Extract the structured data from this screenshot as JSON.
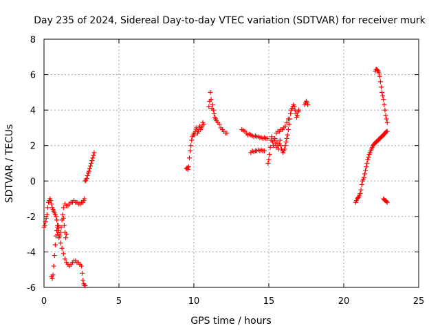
{
  "chart_data": {
    "type": "scatter",
    "title": "Day 235 of 2024, Sidereal Day-to-day VTEC variation (SDTVAR) for receiver murk",
    "xlabel": "GPS time / hours",
    "ylabel": "SDTVAR / TECUs",
    "xlim": [
      0,
      25
    ],
    "ylim": [
      -6,
      8
    ],
    "xticks": [
      0,
      5,
      10,
      15,
      20,
      25
    ],
    "yticks": [
      -6,
      -4,
      -2,
      0,
      2,
      4,
      6,
      8
    ],
    "xtick_labels": [
      "0",
      "5",
      "10",
      "15",
      "20",
      "25"
    ],
    "ytick_labels": [
      "-6",
      "-4",
      "-2",
      "0",
      "2",
      "4",
      "6",
      "8"
    ],
    "grid": true,
    "marker": "plus",
    "color": "#ff0000",
    "segments": [
      {
        "x": [
          0.0,
          0.05,
          0.1,
          0.15,
          0.2,
          0.25,
          0.3,
          0.35,
          0.4,
          0.45,
          0.5,
          0.55,
          0.6,
          0.65,
          0.7,
          0.75,
          0.8,
          0.85,
          0.9,
          0.95,
          1.0,
          1.05,
          1.1,
          1.15,
          1.2,
          1.25,
          1.3,
          1.35,
          1.4,
          1.45,
          1.5
        ],
        "y": [
          -2.6,
          -2.5,
          -2.3,
          -2.1,
          -1.9,
          -1.5,
          -1.2,
          -1.1,
          -1.0,
          -1.1,
          -1.3,
          -1.5,
          -1.6,
          -1.7,
          -1.8,
          -1.9,
          -2.0,
          -2.2,
          -2.5,
          -2.8,
          -3.0,
          -3.1,
          -2.9,
          -2.6,
          -2.2,
          -1.9,
          -2.1,
          -2.5,
          -2.9,
          -3.2,
          -3.0
        ]
      },
      {
        "x": [
          0.5,
          0.55,
          0.6,
          0.65,
          0.7,
          0.75,
          0.8,
          0.85,
          0.9,
          0.95,
          1.0
        ],
        "y": [
          -5.4,
          -5.5,
          -5.3,
          -4.8,
          -4.2,
          -3.6,
          -3.1,
          -2.8,
          -2.6,
          -2.5,
          -2.6
        ]
      },
      {
        "x": [
          0.9,
          1.0,
          1.1,
          1.2,
          1.3,
          1.4,
          1.5,
          1.6,
          1.7,
          1.8,
          1.9,
          2.0,
          2.1,
          2.2,
          2.3,
          2.4,
          2.5,
          2.55,
          2.6,
          2.65,
          2.7,
          2.75
        ],
        "y": [
          -3.0,
          -3.2,
          -3.5,
          -3.8,
          -4.1,
          -4.4,
          -4.6,
          -4.7,
          -4.8,
          -4.7,
          -4.6,
          -4.5,
          -4.5,
          -4.6,
          -4.6,
          -4.7,
          -4.8,
          -5.2,
          -5.6,
          -5.8,
          -5.9,
          -5.9
        ]
      },
      {
        "x": [
          1.3,
          1.4,
          1.5,
          1.6,
          1.7,
          1.8,
          1.9,
          2.0,
          2.1,
          2.2,
          2.3,
          2.4,
          2.5,
          2.6,
          2.65,
          2.7
        ],
        "y": [
          -1.5,
          -1.3,
          -1.4,
          -1.4,
          -1.3,
          -1.2,
          -1.2,
          -1.1,
          -1.2,
          -1.2,
          -1.3,
          -1.3,
          -1.2,
          -1.2,
          -1.1,
          -1.0
        ]
      },
      {
        "x": [
          2.75,
          2.8,
          2.85,
          2.9,
          2.95,
          3.0,
          3.05,
          3.1,
          3.15,
          3.2,
          3.25,
          3.3,
          3.35
        ],
        "y": [
          0.0,
          0.05,
          0.15,
          0.3,
          0.45,
          0.55,
          0.7,
          0.85,
          1.0,
          1.15,
          1.3,
          1.45,
          1.6
        ]
      },
      {
        "x": [
          9.5,
          9.55,
          9.6,
          9.65,
          9.7,
          9.75,
          9.8,
          9.85,
          9.9,
          9.95,
          10.0,
          10.05,
          10.1,
          10.15,
          10.2,
          10.25,
          10.3,
          10.35,
          10.4,
          10.45,
          10.5,
          10.55,
          10.6,
          10.65
        ],
        "y": [
          0.7,
          0.75,
          0.65,
          0.8,
          1.3,
          1.7,
          2.0,
          2.3,
          2.5,
          2.6,
          2.7,
          2.6,
          2.8,
          3.0,
          2.9,
          2.7,
          2.8,
          3.0,
          3.1,
          2.9,
          3.0,
          3.1,
          3.3,
          3.2
        ]
      },
      {
        "x": [
          11.0,
          11.05,
          11.1,
          11.15,
          11.2,
          11.25,
          11.3,
          11.35,
          11.4,
          11.45,
          11.5,
          11.6,
          11.7,
          11.8,
          11.9,
          12.0,
          12.1,
          12.2
        ],
        "y": [
          4.2,
          4.5,
          5.0,
          4.6,
          4.1,
          4.3,
          4.0,
          3.8,
          3.6,
          3.5,
          3.4,
          3.3,
          3.2,
          3.0,
          2.9,
          2.8,
          2.7,
          2.7
        ]
      },
      {
        "x": [
          13.2,
          13.3,
          13.4,
          13.5,
          13.6,
          13.7,
          13.8,
          13.9,
          14.0,
          14.1,
          14.2,
          14.3,
          14.4,
          14.5,
          14.6,
          14.7,
          14.8,
          14.9
        ],
        "y": [
          2.9,
          2.85,
          2.8,
          2.7,
          2.6,
          2.65,
          2.6,
          2.55,
          2.5,
          2.55,
          2.5,
          2.5,
          2.45,
          2.45,
          2.4,
          2.45,
          2.4,
          2.4
        ]
      },
      {
        "x": [
          13.8,
          13.9,
          14.0,
          14.1,
          14.2,
          14.3,
          14.4,
          14.5,
          14.6,
          14.7
        ],
        "y": [
          1.6,
          1.7,
          1.65,
          1.7,
          1.7,
          1.75,
          1.7,
          1.75,
          1.7,
          1.7
        ]
      },
      {
        "x": [
          14.95,
          15.0,
          15.05,
          15.1,
          15.15,
          15.2,
          15.25,
          15.3,
          15.35,
          15.4,
          15.45,
          15.5,
          15.55,
          15.6,
          15.65,
          15.7,
          15.75,
          15.8,
          15.85,
          15.9,
          15.95
        ],
        "y": [
          1.0,
          1.2,
          1.5,
          1.9,
          2.3,
          2.5,
          2.2,
          2.0,
          2.3,
          2.4,
          2.1,
          1.9,
          2.2,
          2.0,
          1.8,
          2.1,
          2.3,
          2.0,
          1.8,
          1.7,
          1.6
        ]
      },
      {
        "x": [
          15.5,
          15.6,
          15.7,
          15.8,
          15.9,
          16.0,
          16.1,
          16.2,
          16.3
        ],
        "y": [
          2.7,
          2.8,
          2.8,
          2.9,
          2.9,
          3.0,
          3.1,
          3.3,
          3.5
        ]
      },
      {
        "x": [
          16.0,
          16.05,
          16.1,
          16.15,
          16.2,
          16.25,
          16.3,
          16.35,
          16.4,
          16.45,
          16.5,
          16.55,
          16.6,
          16.65,
          16.7,
          16.75,
          16.8,
          16.85,
          16.9,
          16.95,
          17.0
        ],
        "y": [
          1.7,
          1.8,
          2.0,
          2.2,
          2.4,
          2.6,
          2.9,
          3.2,
          3.5,
          3.8,
          4.0,
          4.1,
          4.2,
          4.3,
          4.2,
          4.0,
          3.8,
          3.6,
          3.7,
          3.9,
          4.0
        ]
      },
      {
        "x": [
          17.4,
          17.45,
          17.5,
          17.55,
          17.6
        ],
        "y": [
          4.3,
          4.4,
          4.5,
          4.4,
          4.3
        ]
      },
      {
        "x": [
          20.8,
          20.85,
          20.9,
          20.95,
          21.0,
          21.05,
          21.1,
          21.15,
          21.2,
          21.25,
          21.3,
          21.35,
          21.4,
          21.45,
          21.5,
          21.55,
          21.6,
          21.65,
          21.7,
          21.75,
          21.8,
          21.85,
          21.9,
          21.95,
          22.0,
          22.05,
          22.1,
          22.15,
          22.2,
          22.25,
          22.3,
          22.35,
          22.4,
          22.45,
          22.5,
          22.55,
          22.6,
          22.65,
          22.7,
          22.75,
          22.8,
          22.85,
          22.9
        ],
        "y": [
          -1.2,
          -1.1,
          -1.0,
          -0.95,
          -0.9,
          -0.8,
          -0.7,
          -0.5,
          -0.2,
          0.0,
          0.1,
          0.2,
          0.4,
          0.6,
          0.8,
          1.0,
          1.2,
          1.35,
          1.5,
          1.6,
          1.7,
          1.8,
          1.9,
          2.0,
          2.05,
          2.1,
          2.15,
          2.2,
          2.25,
          2.25,
          2.3,
          2.35,
          2.4,
          2.45,
          2.5,
          2.5,
          2.55,
          2.6,
          2.65,
          2.7,
          2.75,
          2.8,
          2.8
        ]
      },
      {
        "x": [
          22.1,
          22.15,
          22.2,
          22.25,
          22.3,
          22.35,
          22.4,
          22.45,
          22.5,
          22.55,
          22.6,
          22.65,
          22.7,
          22.75,
          22.8,
          22.85,
          22.9
        ],
        "y": [
          6.2,
          6.3,
          6.3,
          6.25,
          6.2,
          6.1,
          5.9,
          5.6,
          5.3,
          5.0,
          4.8,
          4.6,
          4.3,
          4.0,
          3.7,
          3.5,
          3.3
        ]
      },
      {
        "x": [
          22.65,
          22.7,
          22.75,
          22.8,
          22.85,
          22.9
        ],
        "y": [
          -1.0,
          -1.05,
          -1.1,
          -1.1,
          -1.15,
          -1.2
        ]
      }
    ]
  }
}
